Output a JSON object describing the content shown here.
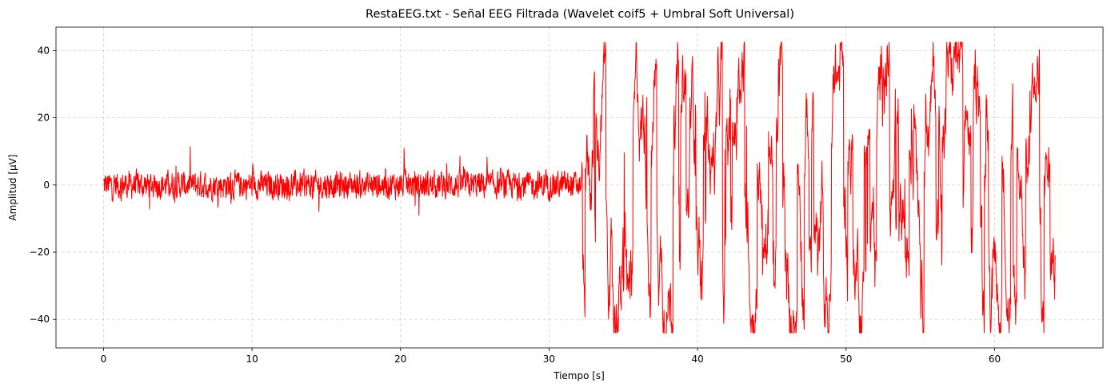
{
  "chart_data": {
    "type": "line",
    "title": "RestaEEG.txt - Señal EEG Filtrada (Wavelet coif5 + Umbral Soft Universal)",
    "xlabel": "Tiempo [s]",
    "ylabel": "Amplitud [µV]",
    "xlim": [
      -3.2,
      67.3
    ],
    "ylim": [
      -48.5,
      47
    ],
    "xticks": [
      0,
      10,
      20,
      30,
      40,
      50,
      60
    ],
    "xtick_labels": [
      "0",
      "10",
      "20",
      "30",
      "40",
      "50",
      "60"
    ],
    "yticks": [
      -40,
      -20,
      0,
      20,
      40
    ],
    "ytick_labels": [
      "−40",
      "−20",
      "0",
      "20",
      "40"
    ],
    "grid": true,
    "legend": "none",
    "series": [
      {
        "color": "#ff0000",
        "x_start": 0,
        "x_end": 64.1,
        "description_points": [
          [
            0,
            2
          ],
          [
            2,
            0
          ],
          [
            4,
            1
          ],
          [
            6,
            -1
          ],
          [
            8,
            0
          ],
          [
            10,
            1
          ],
          [
            12,
            -1
          ],
          [
            14,
            0
          ],
          [
            16,
            1
          ],
          [
            18,
            -1
          ],
          [
            20,
            0
          ],
          [
            22,
            1
          ],
          [
            24,
            -1
          ],
          [
            26,
            0
          ],
          [
            28,
            1
          ],
          [
            30,
            0
          ],
          [
            31.9,
            -2
          ],
          [
            32.3,
            40
          ],
          [
            32.6,
            -36
          ],
          [
            33,
            42
          ],
          [
            33.5,
            -40
          ],
          [
            34,
            42
          ],
          [
            35,
            -40
          ],
          [
            36,
            38
          ],
          [
            37,
            -38
          ],
          [
            38,
            41
          ],
          [
            38.6,
            -42
          ],
          [
            39,
            40
          ],
          [
            40,
            -40
          ],
          [
            41,
            38
          ],
          [
            42,
            -41
          ],
          [
            43,
            41
          ],
          [
            44,
            -41
          ],
          [
            45,
            40
          ],
          [
            46,
            40
          ],
          [
            46.5,
            -40
          ],
          [
            47,
            -40
          ],
          [
            48,
            38
          ],
          [
            49,
            -40
          ],
          [
            50,
            41
          ],
          [
            51,
            -40
          ],
          [
            52,
            40
          ],
          [
            53,
            -40
          ],
          [
            54,
            41
          ],
          [
            55,
            -40
          ],
          [
            56,
            40
          ],
          [
            57,
            -41
          ],
          [
            57.5,
            42
          ],
          [
            58,
            -40
          ],
          [
            59,
            -44
          ],
          [
            59.5,
            40
          ],
          [
            60,
            -20
          ],
          [
            61,
            25
          ],
          [
            62,
            -41
          ],
          [
            63,
            10
          ],
          [
            64,
            -10
          ],
          [
            64.1,
            -5
          ]
        ]
      }
    ]
  }
}
